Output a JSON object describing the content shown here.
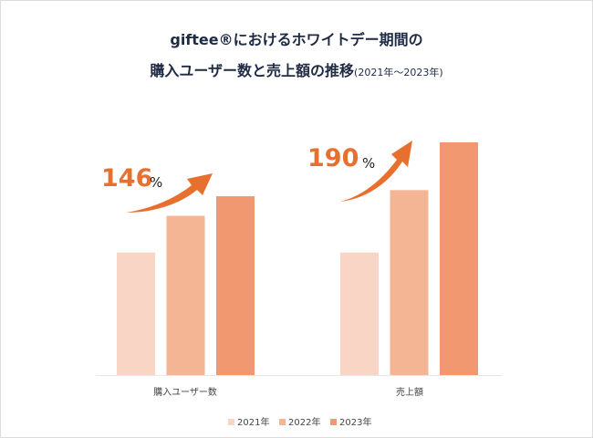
{
  "chart_data": {
    "type": "bar",
    "title": "giftee®におけるホワイトデー期間の",
    "subtitle_main": "購入ユーザー数と売上額の推移",
    "subtitle_range": "(2021年～2023年)",
    "categories": [
      "購入ユーザー数",
      "売上額"
    ],
    "series": [
      {
        "name": "2021年",
        "values": [
          100,
          100
        ],
        "color": "#F9D5C5"
      },
      {
        "name": "2022年",
        "values": [
          130,
          151
        ],
        "color": "#F4B595"
      },
      {
        "name": "2023年",
        "values": [
          146,
          190
        ],
        "color": "#F19870"
      }
    ],
    "annotations": [
      {
        "value": "146",
        "unit": "%",
        "category": "購入ユーザー数"
      },
      {
        "value": "190",
        "unit": "%",
        "category": "売上額"
      }
    ],
    "ylim": [
      0,
      190
    ],
    "grid": false,
    "legend": "bottom",
    "accent": "#E8702F"
  }
}
